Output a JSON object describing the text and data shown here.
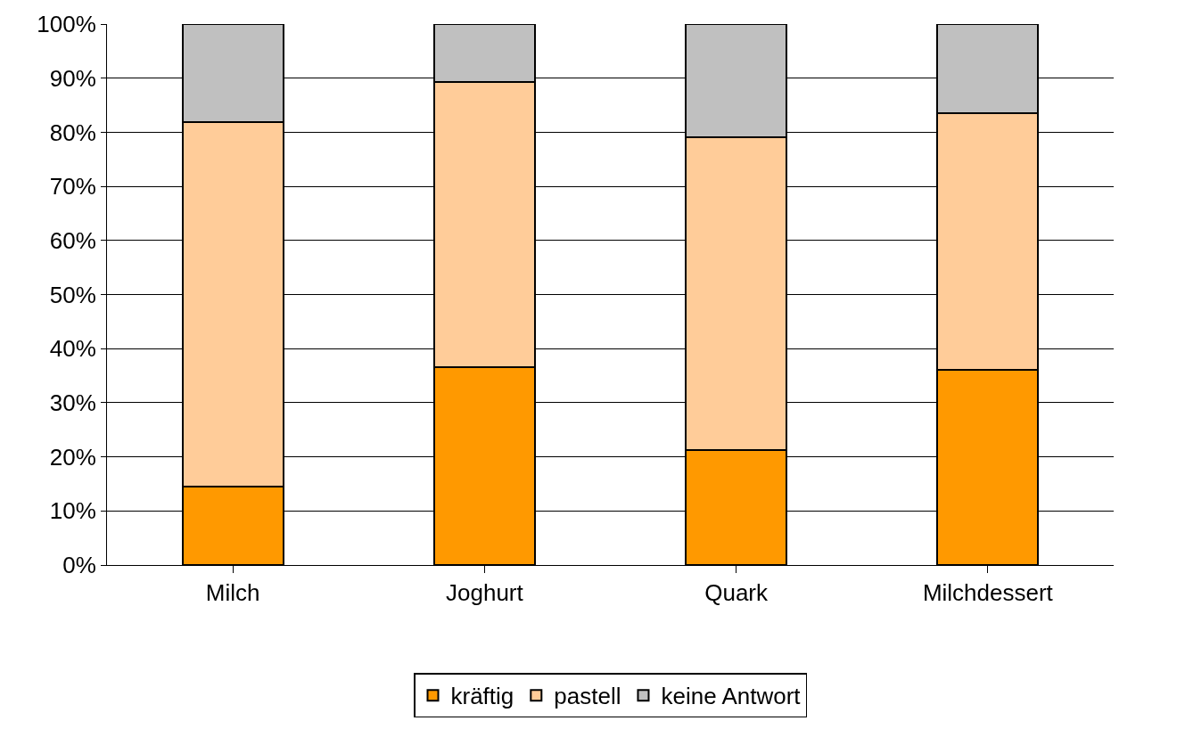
{
  "chart_data": {
    "type": "bar",
    "stacked": true,
    "categories": [
      "Milch",
      "Joghurt",
      "Quark",
      "Milchdessert"
    ],
    "series": [
      {
        "name": "kräftig",
        "color": "#ff9900",
        "values": [
          14.5,
          36.6,
          21.3,
          36.1
        ]
      },
      {
        "name": "pastell",
        "color": "#ffcc99",
        "values": [
          67.3,
          52.7,
          57.8,
          47.5
        ]
      },
      {
        "name": "keine Antwort",
        "color": "#c0c0c0",
        "values": [
          18.2,
          10.7,
          20.9,
          16.4
        ]
      }
    ],
    "ylim": [
      0,
      100
    ],
    "yticks": [
      {
        "value": 0,
        "label": "0%"
      },
      {
        "value": 10,
        "label": "10%"
      },
      {
        "value": 20,
        "label": "20%"
      },
      {
        "value": 30,
        "label": "30%"
      },
      {
        "value": 40,
        "label": "40%"
      },
      {
        "value": 50,
        "label": "50%"
      },
      {
        "value": 60,
        "label": "60%"
      },
      {
        "value": 70,
        "label": "70%"
      },
      {
        "value": 80,
        "label": "80%"
      },
      {
        "value": 90,
        "label": "90%"
      },
      {
        "value": 100,
        "label": "100%"
      }
    ],
    "grid": "y",
    "legend": "bottom"
  }
}
